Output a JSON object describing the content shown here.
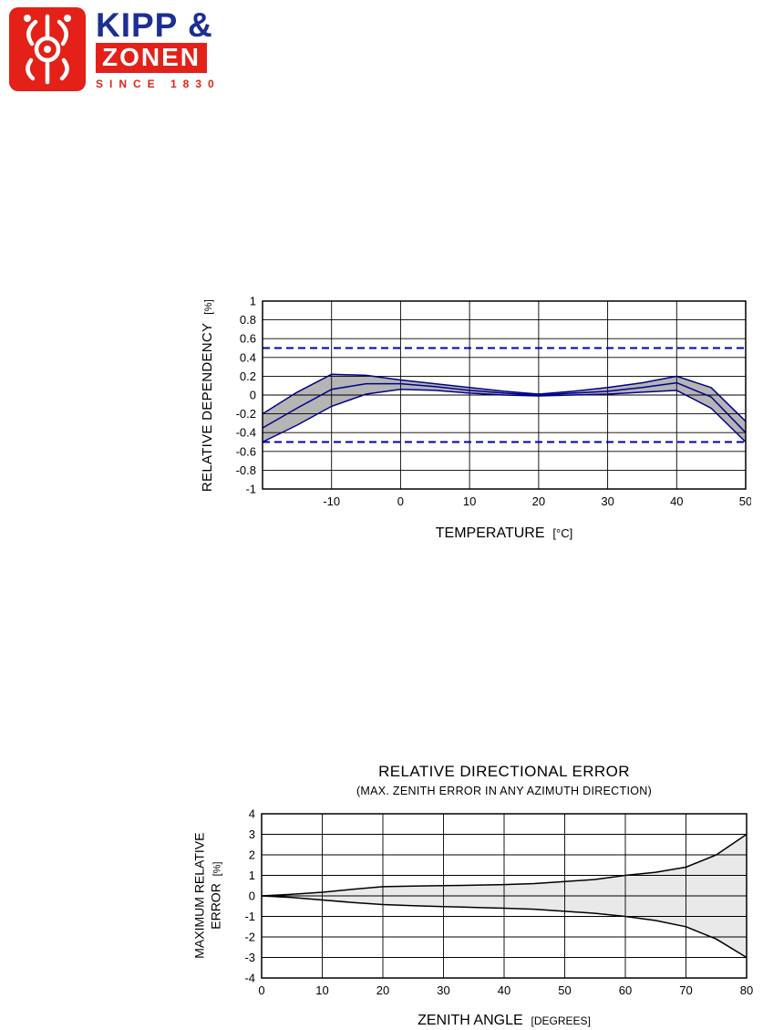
{
  "logo": {
    "line1": "KIPP &",
    "line2": "ZONEN",
    "line3": "SINCE 1830",
    "brand_blue": "#1c2f92",
    "brand_red": "#e32119"
  },
  "chart_data": [
    {
      "id": "temperature-dependency",
      "type": "area",
      "title": "",
      "xlabel": "TEMPERATURE",
      "xlabel_unit": "[°C]",
      "ylabel": "RELATIVE DEPENDENCY",
      "ylabel_unit": "[%]",
      "xlim": [
        -20,
        50
      ],
      "ylim": [
        -1,
        1
      ],
      "xticks": [
        "-10",
        "0",
        "10",
        "20",
        "30",
        "40",
        "50"
      ],
      "yticks": [
        "1",
        "0.8",
        "0.6",
        "0.4",
        "0.2",
        "0",
        "-0.2",
        "-0.4",
        "-0.6",
        "-0.8",
        "-1"
      ],
      "grid": true,
      "guides": {
        "values": [
          0.5,
          -0.5
        ],
        "style": "dashed",
        "color": "#0000b4"
      },
      "line_color": "#00008b",
      "band_fill": "#b5b5b5",
      "x": [
        -20,
        -15,
        -10,
        -5,
        0,
        5,
        10,
        15,
        20,
        25,
        30,
        35,
        40,
        45,
        50
      ],
      "upper": [
        -0.2,
        0.03,
        0.22,
        0.21,
        0.16,
        0.12,
        0.08,
        0.04,
        0.01,
        0.04,
        0.08,
        0.13,
        0.2,
        0.08,
        -0.28
      ],
      "mid": [
        -0.35,
        -0.14,
        0.06,
        0.12,
        0.12,
        0.09,
        0.05,
        0.02,
        0.0,
        0.02,
        0.04,
        0.08,
        0.13,
        -0.02,
        -0.4
      ],
      "lower": [
        -0.5,
        -0.32,
        -0.12,
        0.01,
        0.06,
        0.05,
        0.02,
        0.0,
        -0.01,
        0.0,
        0.01,
        0.03,
        0.05,
        -0.14,
        -0.5
      ]
    },
    {
      "id": "directional-error",
      "type": "area",
      "title": "RELATIVE DIRECTIONAL ERROR",
      "subtitle": "(MAX. ZENITH ERROR IN ANY AZIMUTH DIRECTION)",
      "xlabel": "ZENITH ANGLE",
      "xlabel_unit": "[DEGREES]",
      "ylabel_line1": "MAXIMUM RELATIVE",
      "ylabel_line2": "ERROR",
      "ylabel_unit": "[%]",
      "xlim": [
        0,
        80
      ],
      "ylim": [
        -4,
        4
      ],
      "xticks": [
        "0",
        "10",
        "20",
        "30",
        "40",
        "50",
        "60",
        "70",
        "80"
      ],
      "yticks": [
        "4",
        "3",
        "2",
        "1",
        "0",
        "-1",
        "-2",
        "-3",
        "-4"
      ],
      "grid": true,
      "line_color": "#000000",
      "band_fill": "#e9e9e9",
      "x": [
        0,
        5,
        10,
        15,
        20,
        25,
        30,
        35,
        40,
        45,
        50,
        55,
        60,
        65,
        70,
        75,
        80
      ],
      "upper": [
        0,
        0.08,
        0.18,
        0.32,
        0.45,
        0.48,
        0.5,
        0.52,
        0.55,
        0.6,
        0.7,
        0.8,
        1.0,
        1.15,
        1.4,
        2.0,
        3.0
      ],
      "lower": [
        0,
        -0.08,
        -0.2,
        -0.32,
        -0.42,
        -0.48,
        -0.52,
        -0.56,
        -0.6,
        -0.65,
        -0.75,
        -0.85,
        -1.0,
        -1.2,
        -1.5,
        -2.1,
        -3.0
      ]
    }
  ]
}
